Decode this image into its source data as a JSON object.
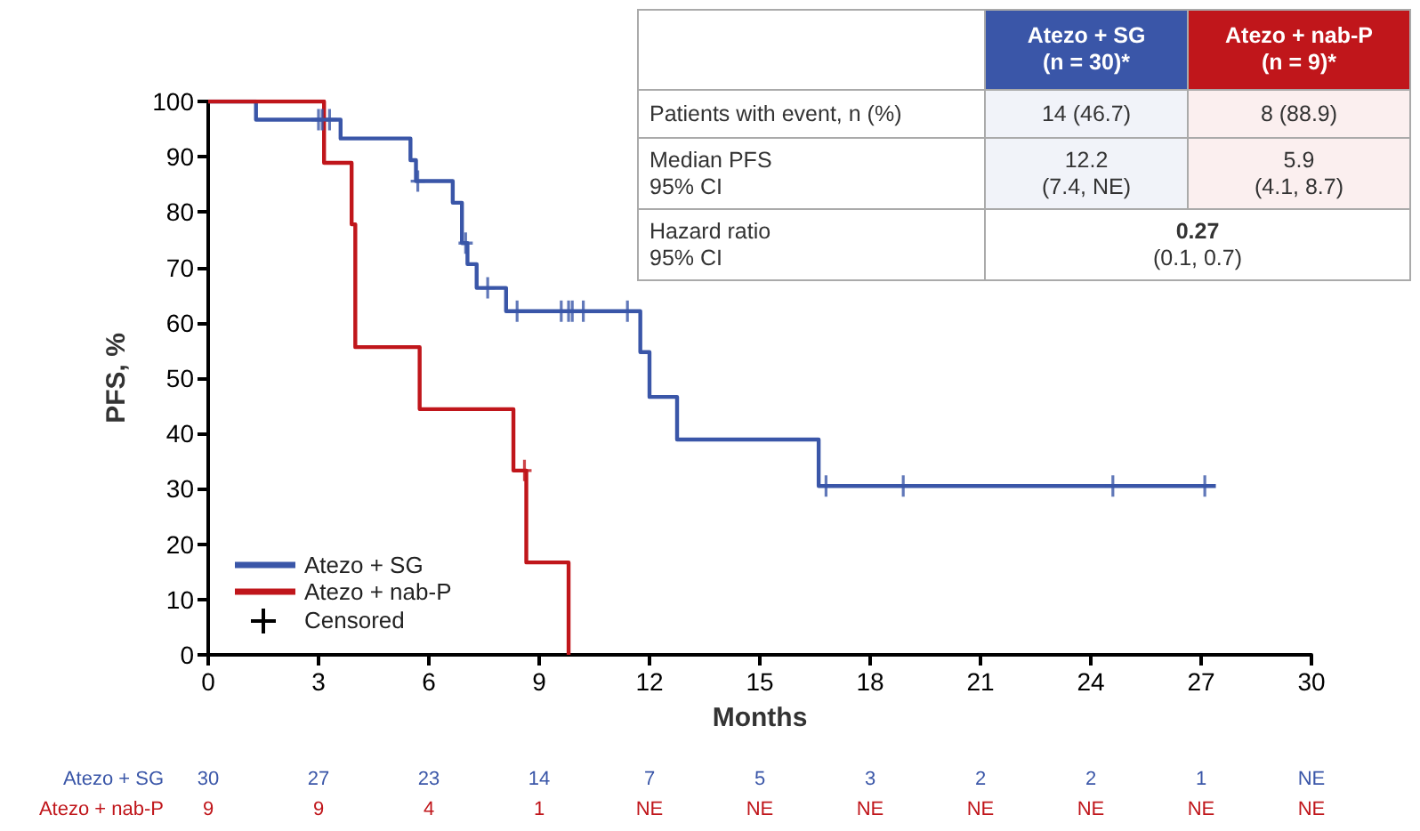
{
  "chart_data": {
    "type": "step",
    "xlabel": "Months",
    "ylabel": "PFS, %",
    "xlim": [
      0,
      30
    ],
    "xticks": [
      0,
      3,
      6,
      9,
      12,
      15,
      18,
      21,
      24,
      27,
      30
    ],
    "ylim": [
      0,
      100
    ],
    "yticks": [
      0,
      10,
      20,
      30,
      40,
      50,
      60,
      70,
      80,
      90,
      100
    ],
    "legend": "bottom left",
    "marker": "none",
    "series": [
      {
        "name": "Atezo + SG",
        "color": "#3a56a8",
        "x": [
          0,
          1.3,
          3.6,
          5.5,
          5.65,
          6.65,
          6.9,
          7.05,
          7.3,
          8.1,
          11.75,
          12.0,
          12.75,
          16.6,
          27.4
        ],
        "values": [
          100,
          96.7,
          93.3,
          89.4,
          85.6,
          81.7,
          74.4,
          70.6,
          66.3,
          62.1,
          54.7,
          46.6,
          38.9,
          30.5,
          30.5
        ]
      },
      {
        "name": "Atezo + nab-P",
        "color": "#c0161b",
        "x": [
          0,
          3.15,
          3.9,
          4.0,
          5.75,
          8.3,
          8.65,
          9.8
        ],
        "values": [
          100,
          88.9,
          77.8,
          55.6,
          44.4,
          33.3,
          16.7,
          0
        ]
      },
      {
        "type": "scatter",
        "marker": "cross",
        "color": "#3a56a8",
        "x": [
          3.0,
          3.1,
          3.3,
          5.7,
          7.0,
          7.6,
          8.4,
          9.6,
          9.8,
          9.9,
          10.2,
          11.4,
          16.8,
          18.9,
          24.6,
          27.1
        ],
        "values": [
          96.7,
          96.7,
          96.7,
          85.6,
          74.4,
          66.3,
          62.1,
          62.1,
          62.1,
          62.1,
          62.1,
          62.1,
          30.5,
          30.5,
          30.5,
          30.5
        ]
      },
      {
        "type": "scatter",
        "marker": "cross",
        "color": "#c0161b",
        "x": [
          8.6
        ],
        "values": [
          33.3
        ]
      }
    ],
    "annotations": [
      "Atezo + SG\n(n = 30)*",
      "Atezo + nab-P\n(n = 9)*",
      "Patients with event, n (%)",
      "14 (46.7)",
      "8 (88.9)",
      "Median PFS\n95% CI",
      "12.2\n(7.4, NE)",
      "5.9\n(4.1, 8.7)",
      "Hazard ratio\n95% CI",
      "0.27\n(0.1, 0.7)",
      "30",
      "27",
      "23",
      "14",
      "7",
      "5",
      "3",
      "2",
      "2",
      "1",
      "NE",
      "9",
      "9",
      "4",
      "1",
      "NE",
      "NE",
      "NE",
      "NE",
      "NE",
      "NE",
      "NE",
      "Censored"
    ]
  }
}
